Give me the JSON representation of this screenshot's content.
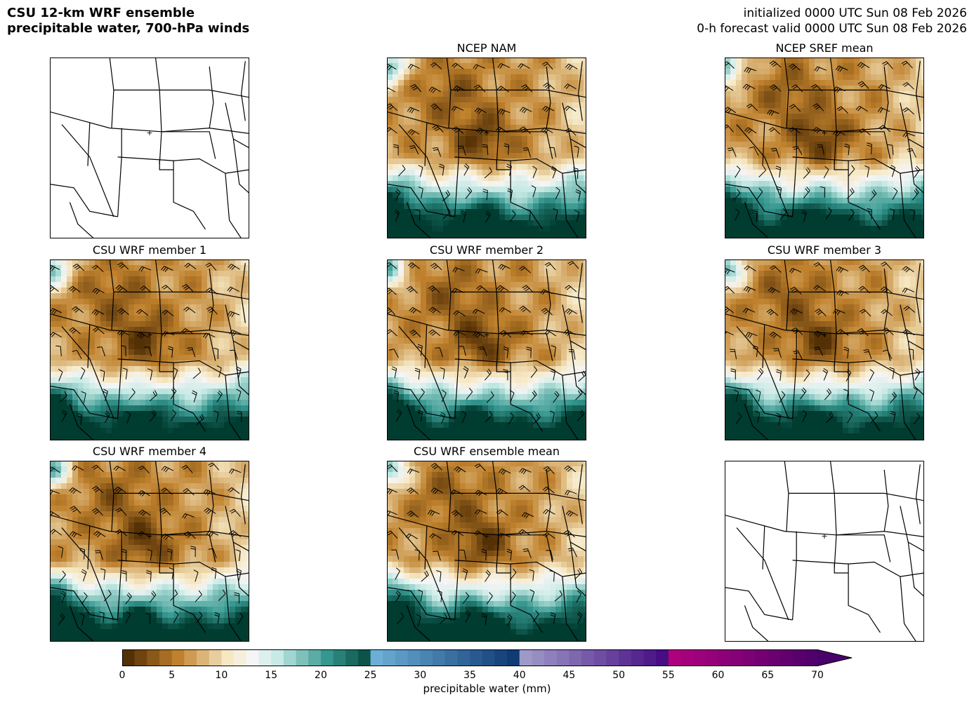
{
  "header": {
    "title_line1": "CSU 12-km WRF ensemble",
    "title_line2": "precipitable water, 700-hPa winds",
    "init_line": "initialized 0000 UTC Sun 08 Feb 2026",
    "valid_line": "0-h forecast valid 0000 UTC Sun 08 Feb 2026"
  },
  "panels": [
    {
      "id": "blank-top-left",
      "title": "",
      "kind": "basemap"
    },
    {
      "id": "ncep-nam",
      "title": "NCEP NAM",
      "kind": "field"
    },
    {
      "id": "ncep-sref-mean",
      "title": "NCEP SREF mean",
      "kind": "field"
    },
    {
      "id": "member-1",
      "title": "CSU WRF member 1",
      "kind": "field"
    },
    {
      "id": "member-2",
      "title": "CSU WRF member 2",
      "kind": "field"
    },
    {
      "id": "member-3",
      "title": "CSU WRF member 3",
      "kind": "field"
    },
    {
      "id": "member-4",
      "title": "CSU WRF member 4",
      "kind": "field"
    },
    {
      "id": "ensemble-mean",
      "title": "CSU WRF ensemble mean",
      "kind": "field"
    },
    {
      "id": "blank-bottom-right",
      "title": "",
      "kind": "basemap"
    }
  ],
  "colorbar": {
    "label": "precipitable water (mm)",
    "ticks": [
      "0",
      "5",
      "10",
      "15",
      "20",
      "25",
      "30",
      "35",
      "40",
      "45",
      "50",
      "55",
      "60",
      "65",
      "70"
    ],
    "min": 0,
    "max": 70,
    "extend": "max",
    "colors": {
      "dry_dark": "#543005",
      "dry_mid": "#bf812d",
      "dry_light": "#f6e8c3",
      "neutral": "#f5f5f5",
      "moist_light": "#c7eae5",
      "moist_mid": "#35978f",
      "moist_dark": "#003c30",
      "blue_light": "#6baed6",
      "blue_dark": "#08306b",
      "purple_light": "#9e9ac8",
      "purple_dark": "#3f007d",
      "magenta_light": "#ae017e",
      "magenta_dark": "#49006a"
    }
  }
}
